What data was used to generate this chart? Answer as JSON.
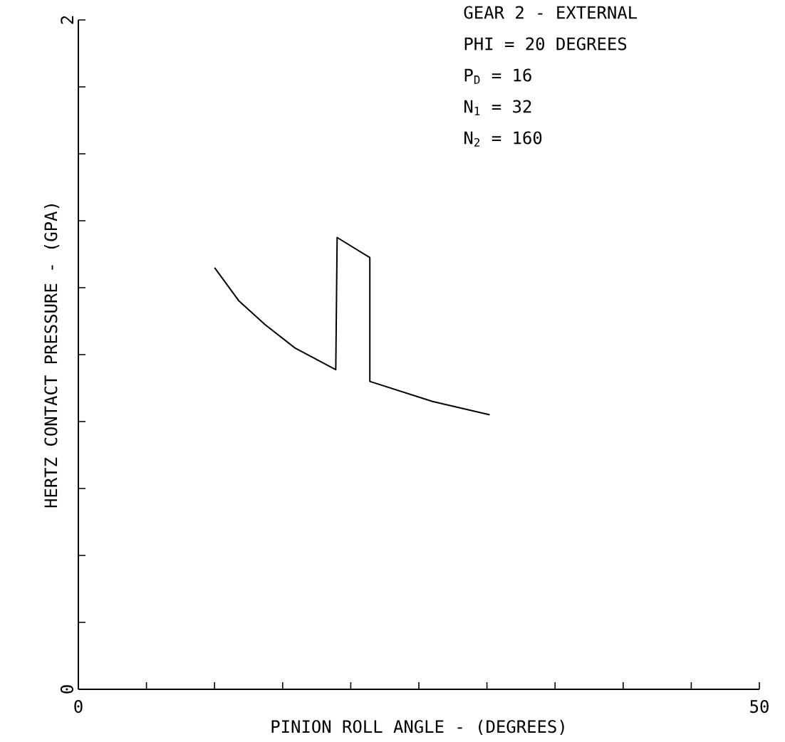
{
  "chart_data": {
    "type": "line",
    "xlabel": "PINION ROLL ANGLE - (DEGREES)",
    "ylabel": "HERTZ CONTACT PRESSURE - (GPA)",
    "annotations": [
      "GEAR 2  -  EXTERNAL",
      "PHI = 20 DEGREES",
      "P$_{D}$ = 16",
      "N$_{1}$ = 32",
      "N$_{2}$ = 160"
    ],
    "series": [
      {
        "color": "#000000",
        "x": [
          10,
          11.8,
          13.7,
          15.9,
          18.9,
          19.0,
          21.4,
          21.4,
          26.0,
          30.2
        ],
        "values": [
          1.26,
          1.16,
          1.09,
          1.02,
          0.955,
          1.35,
          1.29,
          0.92,
          0.86,
          0.82
        ]
      }
    ],
    "xlim": [
      0,
      50
    ],
    "ylim": [
      0,
      2
    ],
    "xticks": [
      0,
      {
        "value": 5,
        "label": null
      },
      {
        "value": 10,
        "label": null
      },
      {
        "value": 15,
        "label": null
      },
      {
        "value": 20,
        "label": null
      },
      {
        "value": 25,
        "label": null
      },
      {
        "value": 30,
        "label": null
      },
      {
        "value": 35,
        "label": null
      },
      {
        "value": 40,
        "label": null
      },
      {
        "value": 45,
        "label": null
      },
      50
    ],
    "yticks": [
      0,
      {
        "value": 0.2,
        "label": null
      },
      {
        "value": 0.4,
        "label": null
      },
      {
        "value": 0.6,
        "label": null
      },
      {
        "value": 0.8,
        "label": null
      },
      {
        "value": 1.0,
        "label": null
      },
      {
        "value": 1.2,
        "label": null
      },
      {
        "value": 1.4,
        "label": null
      },
      {
        "value": 1.6,
        "label": null
      },
      {
        "value": 1.8,
        "label": null
      },
      2
    ],
    "marker": "none",
    "line_style": "solid"
  }
}
